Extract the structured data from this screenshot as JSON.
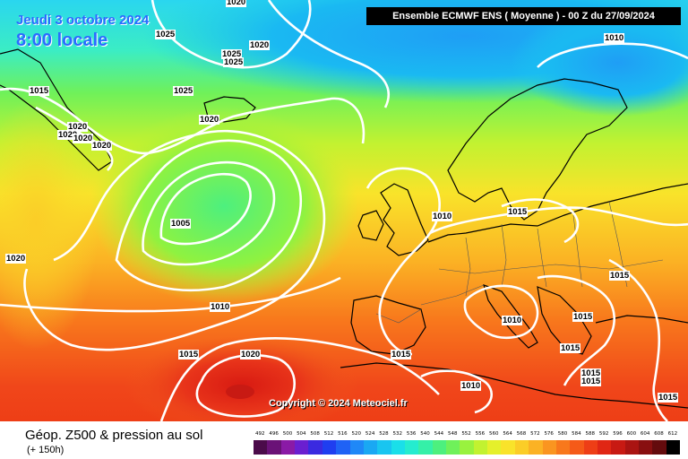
{
  "header": {
    "model_title": "Ensemble ECMWF ENS  ( Moyenne )  -  00 Z du 27/09/2024",
    "date": "Jeudi 3 octobre 2024",
    "time": "8:00 locale"
  },
  "copyright": "Copyright © 2024 Meteociel.fr",
  "isobar_labels": [
    "1020",
    "1025",
    "1020",
    "1025",
    "1025",
    "1015",
    "1025",
    "1020",
    "1020",
    "1020",
    "1020",
    "1020",
    "1005",
    "1020",
    "1010",
    "1015",
    "1020",
    "1010",
    "1015",
    "1015",
    "1010",
    "1015",
    "1015",
    "1010",
    "1015",
    "1015",
    "1015",
    "1015",
    "1010",
    "1015"
  ],
  "legend": {
    "title": "Géop. Z500 & pression au sol",
    "subtitle": "(+ 150h)",
    "scale_values": [
      "492",
      "496",
      "500",
      "504",
      "508",
      "512",
      "516",
      "520",
      "524",
      "528",
      "532",
      "536",
      "540",
      "544",
      "548",
      "552",
      "556",
      "560",
      "564",
      "568",
      "572",
      "576",
      "580",
      "584",
      "588",
      "592",
      "596",
      "600",
      "604",
      "608",
      "612"
    ],
    "scale_colors": [
      "#4b0b4a",
      "#6a1277",
      "#8a1aa6",
      "#6a1fd0",
      "#3a2ae0",
      "#1f3ef0",
      "#1f62f5",
      "#1f88f7",
      "#1aa8f3",
      "#19c5f0",
      "#1adfe9",
      "#25eccf",
      "#35f0a8",
      "#4df07e",
      "#6ff15a",
      "#99f23e",
      "#c2f230",
      "#e5f02b",
      "#f9e32a",
      "#fbcd27",
      "#fbb224",
      "#fa9520",
      "#f8781c",
      "#f55a18",
      "#ee3e16",
      "#e02614",
      "#c81a13",
      "#aa1412",
      "#880f10",
      "#640b0d",
      "#000000"
    ]
  },
  "colors": {
    "header_bg": "#000000",
    "date_text": "#2a6cff",
    "isobar": "#ffffff",
    "coast": "#000000",
    "borders": "#555555"
  }
}
